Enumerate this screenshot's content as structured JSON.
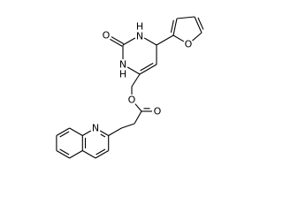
{
  "atoms": [
    {
      "symbol": "O"
    },
    {
      "symbol": "N",
      "hydrogen": "H"
    },
    {
      "symbol": "N",
      "hydrogen": "H"
    },
    {
      "symbol": "O"
    },
    {
      "symbol": "O"
    },
    {
      "symbol": "O"
    },
    {
      "symbol": "N"
    }
  ]
}
